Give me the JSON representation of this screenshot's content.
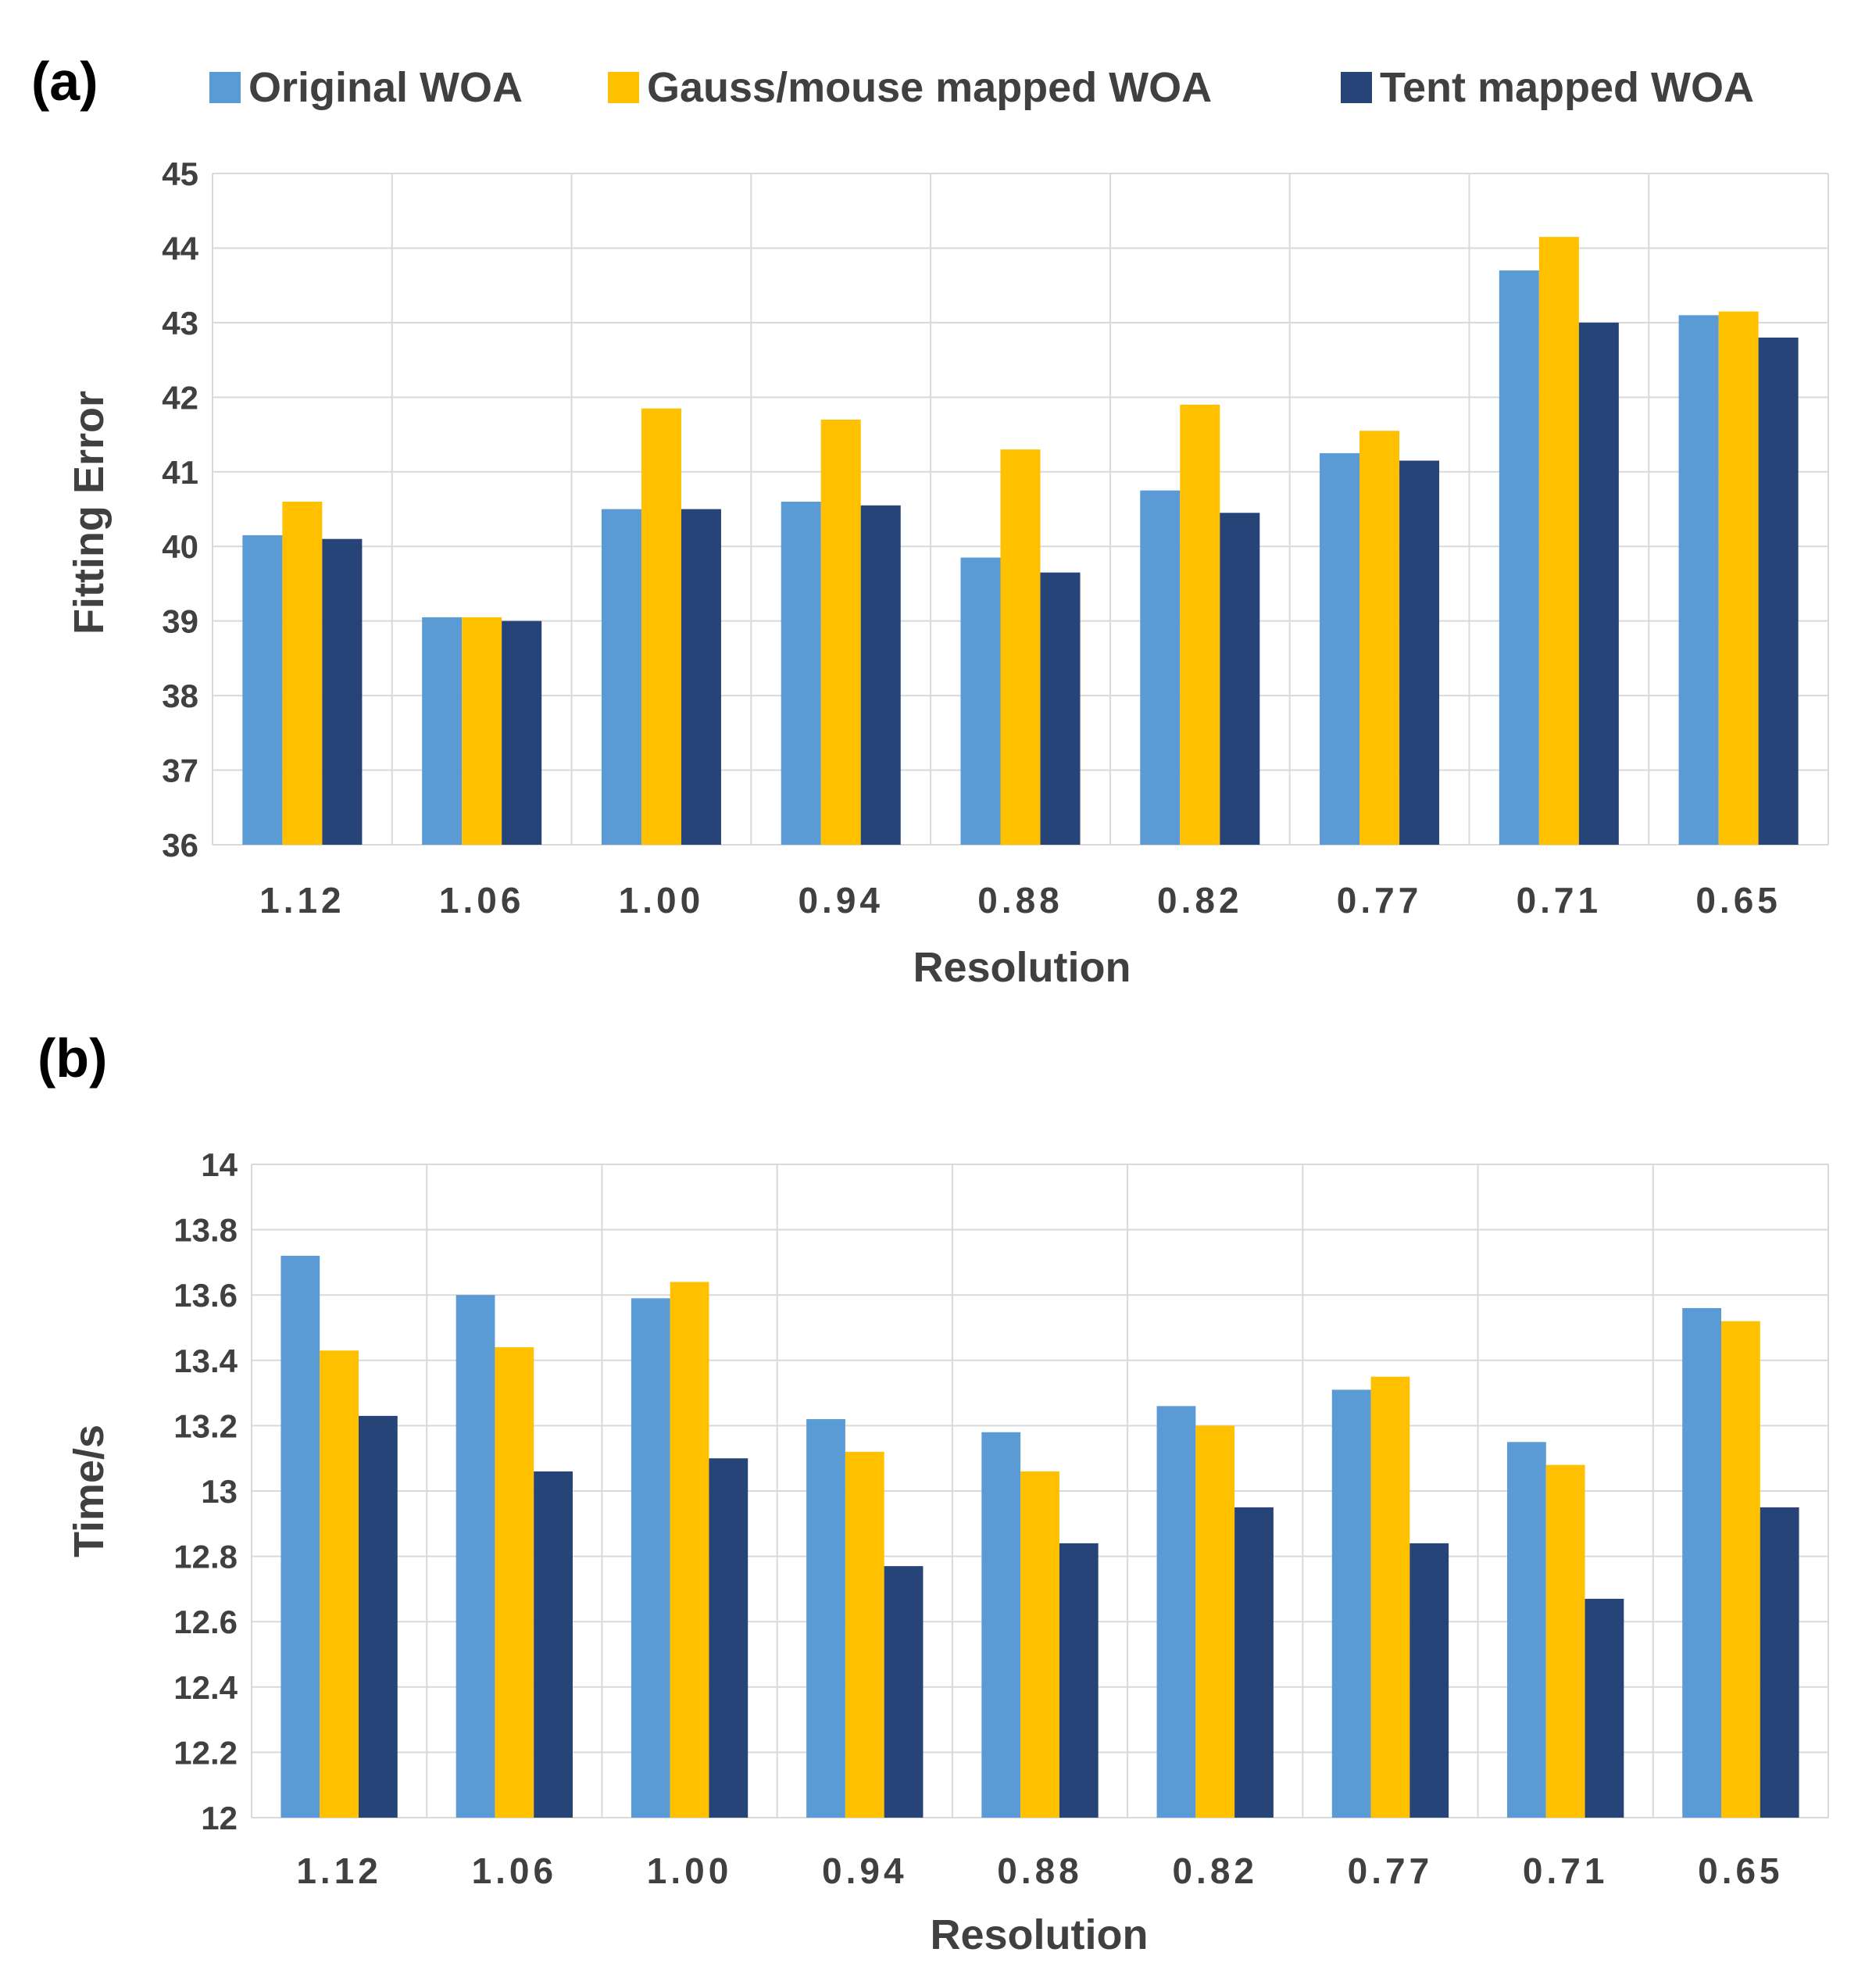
{
  "legend": {
    "items": [
      {
        "label": "Original WOA",
        "color": "#5B9BD5"
      },
      {
        "label": "Gauss/mouse mapped WOA",
        "color": "#FFC000"
      },
      {
        "label": "Tent mapped WOA",
        "color": "#264478"
      }
    ]
  },
  "chart_data": [
    {
      "panel_label": "(a)",
      "type": "bar",
      "categories": [
        "1.12",
        "1.06",
        "1.00",
        "0.94",
        "0.88",
        "0.82",
        "0.77",
        "0.71",
        "0.65"
      ],
      "series": [
        {
          "name": "Original WOA",
          "values": [
            40.15,
            39.05,
            40.5,
            40.6,
            39.85,
            40.75,
            41.25,
            43.7,
            43.1
          ]
        },
        {
          "name": "Gauss/mouse mapped WOA",
          "values": [
            40.6,
            39.05,
            41.85,
            41.7,
            41.3,
            41.9,
            41.55,
            44.15,
            43.15
          ]
        },
        {
          "name": "Tent mapped WOA",
          "values": [
            40.1,
            39.0,
            40.5,
            40.55,
            39.65,
            40.45,
            41.15,
            43.0,
            42.8
          ]
        }
      ],
      "xlabel": "Resolution",
      "ylabel": "Fitting Error",
      "ylim": [
        36,
        45
      ],
      "yticks": [
        "36",
        "37",
        "38",
        "39",
        "40",
        "41",
        "42",
        "43",
        "44",
        "45"
      ],
      "grid": true
    },
    {
      "panel_label": "(b)",
      "type": "bar",
      "categories": [
        "1.12",
        "1.06",
        "1.00",
        "0.94",
        "0.88",
        "0.82",
        "0.77",
        "0.71",
        "0.65"
      ],
      "series": [
        {
          "name": "Original WOA",
          "values": [
            13.72,
            13.6,
            13.59,
            13.22,
            13.18,
            13.26,
            13.31,
            13.15,
            13.56
          ]
        },
        {
          "name": "Gauss/mouse mapped WOA",
          "values": [
            13.43,
            13.44,
            13.64,
            13.12,
            13.06,
            13.2,
            13.35,
            13.08,
            13.52
          ]
        },
        {
          "name": "Tent mapped WOA",
          "values": [
            13.23,
            13.06,
            13.1,
            12.77,
            12.84,
            12.95,
            12.84,
            12.67,
            12.95
          ]
        }
      ],
      "xlabel": "Resolution",
      "ylabel": "Time/s",
      "ylim": [
        12,
        14
      ],
      "yticks": [
        "12",
        "12.2",
        "12.4",
        "12.6",
        "12.8",
        "13",
        "13.2",
        "13.4",
        "13.6",
        "13.8",
        "14"
      ],
      "grid": true
    }
  ]
}
